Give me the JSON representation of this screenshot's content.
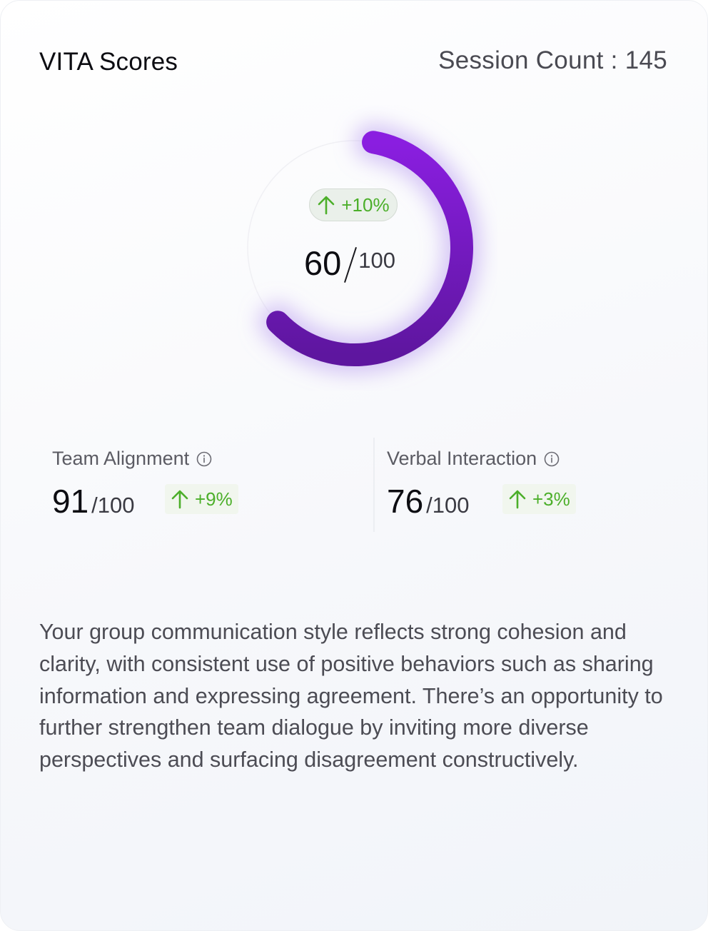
{
  "header": {
    "title": "VITA Scores",
    "session_count": "Session Count : 145"
  },
  "overall": {
    "score": "60",
    "max": "100",
    "score_fraction": 0.6,
    "delta": "+10%",
    "arc_color_start": "#8a1ee0",
    "arc_color_end": "#5e169f"
  },
  "metrics": [
    {
      "label": "Team Alignment",
      "value": "91",
      "max": "/100",
      "delta": "+9%"
    },
    {
      "label": "Verbal Interaction",
      "value": "76",
      "max": "/100",
      "delta": "+3%"
    }
  ],
  "summary": "Your group communication style reflects strong cohesion and clarity, with consistent use of positive behaviors such as sharing information and expressing agreement. There’s an opportunity to further strengthen team dialogue by inviting more diverse perspectives and surfacing disagreement constructively.",
  "colors": {
    "positive": "#4caf2a",
    "accent": "#7b1bd1"
  },
  "icons": {
    "delta": "arrow-up-icon",
    "info": "info-icon"
  }
}
